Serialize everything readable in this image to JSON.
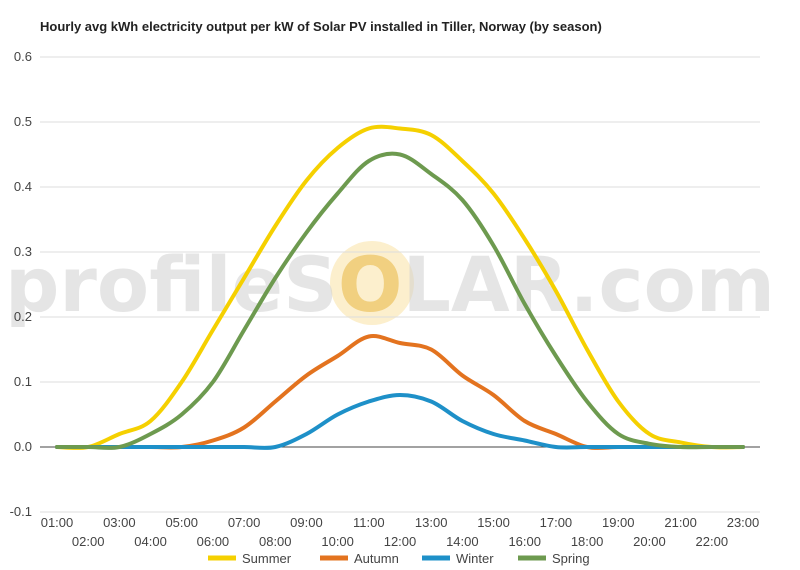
{
  "watermark": {
    "part1": "profile",
    "part2": "S",
    "part3": "LAR.com"
  },
  "chart_data": {
    "type": "line",
    "title": "Hourly avg kWh electricity output per kW of Solar PV installed in Tiller, Norway (by season)",
    "xlabel": "",
    "ylabel": "",
    "ylim": [
      -0.1,
      0.6
    ],
    "yticks": [
      "-0.1",
      "0.0",
      "0.1",
      "0.2",
      "0.3",
      "0.4",
      "0.5",
      "0.6"
    ],
    "grid": true,
    "legend_position": "bottom",
    "x": [
      "01:00",
      "02:00",
      "03:00",
      "04:00",
      "05:00",
      "06:00",
      "07:00",
      "08:00",
      "09:00",
      "10:00",
      "11:00",
      "12:00",
      "13:00",
      "14:00",
      "15:00",
      "16:00",
      "17:00",
      "18:00",
      "19:00",
      "20:00",
      "21:00",
      "22:00",
      "23:00"
    ],
    "series": [
      {
        "name": "Summer",
        "color": "#f5d000",
        "values": [
          0.0,
          0.0,
          0.02,
          0.04,
          0.1,
          0.18,
          0.26,
          0.34,
          0.41,
          0.46,
          0.49,
          0.49,
          0.48,
          0.44,
          0.39,
          0.32,
          0.24,
          0.15,
          0.07,
          0.02,
          0.007,
          0.0,
          0.0
        ]
      },
      {
        "name": "Autumn",
        "color": "#e3731f",
        "values": [
          0.0,
          0.0,
          0.0,
          0.0,
          0.0,
          0.01,
          0.03,
          0.07,
          0.11,
          0.14,
          0.17,
          0.16,
          0.15,
          0.11,
          0.08,
          0.04,
          0.02,
          0.0,
          0.0,
          0.0,
          0.0,
          0.0,
          0.0
        ]
      },
      {
        "name": "Winter",
        "color": "#1e90c8",
        "values": [
          0.0,
          0.0,
          0.0,
          0.0,
          0.0,
          0.0,
          0.0,
          0.0,
          0.02,
          0.05,
          0.07,
          0.08,
          0.07,
          0.04,
          0.02,
          0.01,
          0.0,
          0.0,
          0.0,
          0.0,
          0.0,
          0.0,
          0.0
        ]
      },
      {
        "name": "Spring",
        "color": "#6d9a4f",
        "values": [
          0.0,
          0.0,
          0.0,
          0.02,
          0.05,
          0.1,
          0.18,
          0.26,
          0.33,
          0.39,
          0.44,
          0.45,
          0.42,
          0.38,
          0.31,
          0.22,
          0.14,
          0.07,
          0.02,
          0.005,
          0.0,
          0.0,
          0.0
        ]
      }
    ]
  }
}
